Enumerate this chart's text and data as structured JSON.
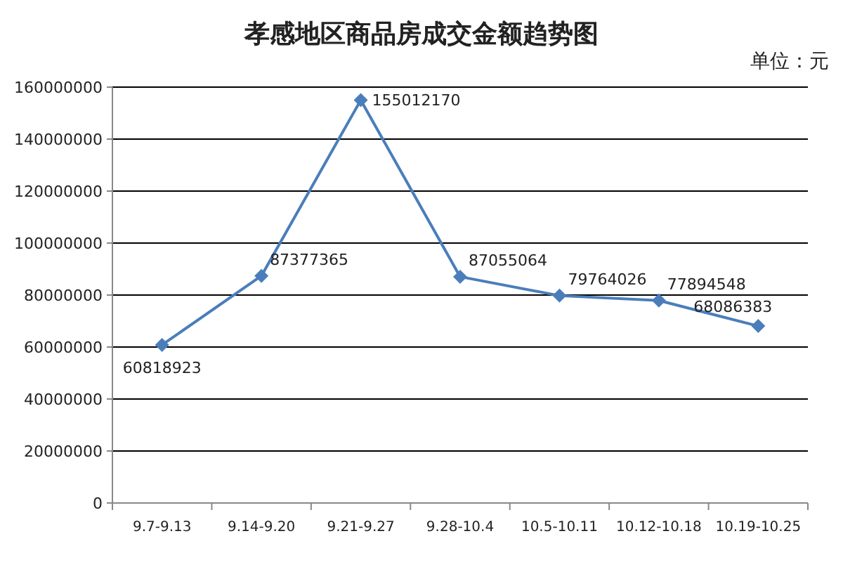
{
  "chart_data": {
    "type": "line",
    "title": "孝感地区商品房成交金额趋势图",
    "annotations": [
      "单位：元"
    ],
    "categories": [
      "9.7-9.13",
      "9.14-9.20",
      "9.21-9.27",
      "9.28-10.4",
      "10.5-10.11",
      "10.12-10.18",
      "10.19-10.25"
    ],
    "series": [
      {
        "color": "#4a7ebb",
        "values": [
          60818923,
          87377365,
          155012170,
          87055064,
          79764026,
          77894548,
          68086383
        ]
      }
    ],
    "ylim": [
      0,
      160000000
    ],
    "yticks": [
      0,
      20000000,
      40000000,
      60000000,
      80000000,
      100000000,
      120000000,
      140000000,
      160000000
    ],
    "grid": "y",
    "marker": "diamond",
    "line_style": "solid",
    "data_labels": true
  }
}
